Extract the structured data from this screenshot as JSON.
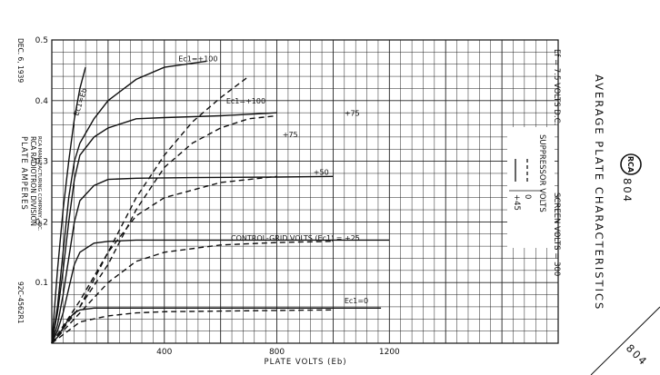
{
  "chart_data": {
    "type": "line",
    "title": "AVERAGE PLATE CHARACTERISTICS",
    "tube": "804",
    "conditions": "Ef = 7.5 VOLTS D.C.",
    "screen": "SCREEN VOLTS = 300",
    "suppressor_header": "SUPPRESSOR VOLTS",
    "suppressor_values": [
      "+45",
      "0"
    ],
    "xlabel": "PLATE VOLTS (Eb)",
    "ylabel": "PLATE AMPERES",
    "family_label": "CONTROL-GRID VOLTS (Ec1) = +25",
    "envelope_label": "Ec1=Eb",
    "date": "DEC. 6, 1939",
    "maker": "RCA RADIOTRON DIVISION",
    "maker_sub": "RCA MANUFACTURING COMPANY, INC.",
    "drawing_no": "92C-4562R1",
    "corner_text": "804",
    "xlim": [
      0,
      1800
    ],
    "ylim": [
      0,
      0.5
    ],
    "xticks": [
      400,
      800,
      1200
    ],
    "yticks": [
      0.1,
      0.2,
      0.3,
      0.4,
      0.5
    ],
    "grid": true,
    "series": [
      {
        "name": "Ec1=Eb",
        "style": "solid",
        "x": [
          0,
          20,
          40,
          60,
          80,
          100,
          120
        ],
        "y": [
          0,
          0.12,
          0.22,
          0.3,
          0.37,
          0.42,
          0.455
        ]
      },
      {
        "name": "Ec1=+100",
        "style": "solid",
        "x": [
          0,
          20,
          40,
          60,
          80,
          100,
          150,
          200,
          300,
          400,
          550
        ],
        "y": [
          0,
          0.06,
          0.15,
          0.24,
          0.3,
          0.33,
          0.37,
          0.4,
          0.435,
          0.455,
          0.465
        ]
      },
      {
        "name": "+75",
        "style": "solid",
        "x": [
          0,
          20,
          40,
          60,
          80,
          100,
          150,
          200,
          300,
          400,
          600,
          800
        ],
        "y": [
          0,
          0.05,
          0.12,
          0.2,
          0.27,
          0.31,
          0.34,
          0.355,
          0.37,
          0.372,
          0.375,
          0.38
        ]
      },
      {
        "name": "+50",
        "style": "solid",
        "x": [
          0,
          20,
          40,
          60,
          80,
          100,
          150,
          200,
          300,
          500,
          800,
          1000
        ],
        "y": [
          0,
          0.03,
          0.08,
          0.14,
          0.2,
          0.235,
          0.26,
          0.27,
          0.272,
          0.273,
          0.274,
          0.275
        ]
      },
      {
        "name": "+25",
        "style": "solid",
        "x": [
          0,
          20,
          40,
          60,
          80,
          100,
          150,
          200,
          300,
          500,
          800,
          1200
        ],
        "y": [
          0,
          0.02,
          0.05,
          0.09,
          0.13,
          0.15,
          0.165,
          0.168,
          0.17,
          0.17,
          0.17,
          0.17
        ]
      },
      {
        "name": "Ec1=0",
        "style": "solid",
        "x": [
          0,
          20,
          40,
          60,
          80,
          100,
          150,
          200,
          400,
          800,
          1170
        ],
        "y": [
          0,
          0.01,
          0.025,
          0.04,
          0.05,
          0.055,
          0.058,
          0.058,
          0.058,
          0.058,
          0.058
        ]
      },
      {
        "name": "Ec1=+100",
        "style": "dashed",
        "x": [
          0,
          100,
          200,
          300,
          400,
          500,
          600,
          700
        ],
        "y": [
          0,
          0.07,
          0.15,
          0.24,
          0.31,
          0.365,
          0.405,
          0.44
        ]
      },
      {
        "name": "+75",
        "style": "dashed",
        "x": [
          0,
          100,
          200,
          300,
          400,
          500,
          600,
          700,
          800
        ],
        "y": [
          0,
          0.06,
          0.13,
          0.22,
          0.29,
          0.33,
          0.355,
          0.37,
          0.375
        ]
      },
      {
        "name": "+50",
        "style": "dashed",
        "x": [
          0,
          100,
          200,
          300,
          400,
          600,
          800
        ],
        "y": [
          0,
          0.06,
          0.15,
          0.21,
          0.24,
          0.265,
          0.275
        ]
      },
      {
        "name": "+25",
        "style": "dashed",
        "x": [
          0,
          100,
          200,
          300,
          400,
          600,
          800,
          1000
        ],
        "y": [
          0,
          0.05,
          0.1,
          0.135,
          0.15,
          0.162,
          0.166,
          0.168
        ]
      },
      {
        "name": "Ec1=0",
        "style": "dashed",
        "x": [
          0,
          100,
          200,
          300,
          400,
          600,
          800,
          1000
        ],
        "y": [
          0,
          0.035,
          0.045,
          0.05,
          0.052,
          0.053,
          0.054,
          0.055
        ]
      }
    ],
    "curve_labels": [
      {
        "text": "Ec1=+100",
        "x": 450,
        "y": 0.465
      },
      {
        "text": "Ec1=+100",
        "x": 620,
        "y": 0.395
      },
      {
        "text": "+75",
        "x": 1040,
        "y": 0.375
      },
      {
        "text": "+75",
        "x": 820,
        "y": 0.34
      },
      {
        "text": "+50",
        "x": 930,
        "y": 0.278
      },
      {
        "text": "Ec1=0",
        "x": 1040,
        "y": 0.066
      }
    ],
    "colors": {
      "ink": "#111111",
      "grid": "#222222",
      "paper": "#ffffff"
    }
  }
}
